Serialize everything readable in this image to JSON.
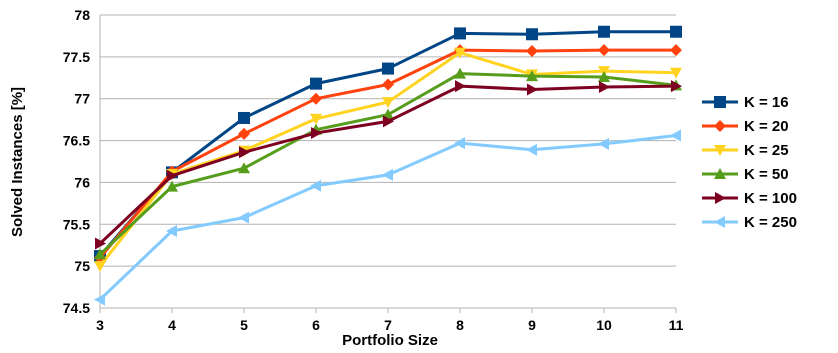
{
  "chart_data": {
    "type": "line",
    "xlabel": "Portfolio Size",
    "ylabel": "Solved Instances [%]",
    "x": [
      3,
      4,
      5,
      6,
      7,
      8,
      9,
      10,
      11
    ],
    "xlim": [
      3,
      11
    ],
    "ylim": [
      74.5,
      78
    ],
    "yticks": [
      "74.5",
      "75",
      "75.5",
      "76",
      "76.5",
      "77",
      "77.5",
      "78"
    ],
    "grid": "horizontal",
    "legend_position": "right",
    "series": [
      {
        "name": "K = 16",
        "color": "#004586",
        "marker": "square",
        "values": [
          75.12,
          76.12,
          76.77,
          77.18,
          77.36,
          77.78,
          77.77,
          77.8,
          77.8
        ]
      },
      {
        "name": "K = 20",
        "color": "#ff420e",
        "marker": "diamond",
        "values": [
          75.1,
          76.13,
          76.58,
          77.0,
          77.17,
          77.58,
          77.57,
          77.58,
          77.58
        ]
      },
      {
        "name": "K = 25",
        "color": "#ffd320",
        "marker": "triangle-down",
        "values": [
          75.0,
          76.1,
          76.38,
          76.76,
          76.96,
          77.55,
          77.29,
          77.33,
          77.31
        ]
      },
      {
        "name": "K = 50",
        "color": "#579d1c",
        "marker": "triangle-up",
        "values": [
          75.14,
          75.95,
          76.17,
          76.63,
          76.81,
          77.3,
          77.27,
          77.26,
          77.16
        ]
      },
      {
        "name": "K = 100",
        "color": "#7e0021",
        "marker": "triangle-right",
        "values": [
          75.27,
          76.08,
          76.36,
          76.59,
          76.73,
          77.15,
          77.11,
          77.14,
          77.15
        ]
      },
      {
        "name": "K = 250",
        "color": "#83caff",
        "marker": "triangle-left",
        "values": [
          74.6,
          75.42,
          75.58,
          75.96,
          76.09,
          76.47,
          76.39,
          76.46,
          76.56
        ]
      }
    ]
  }
}
